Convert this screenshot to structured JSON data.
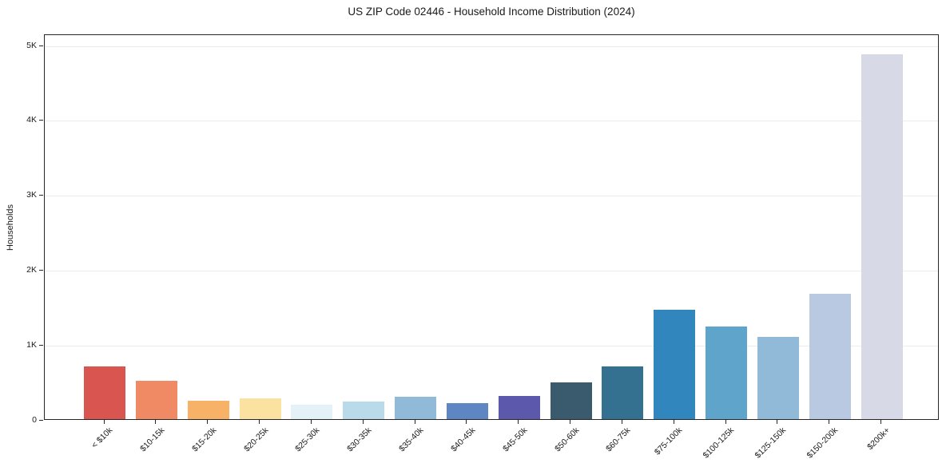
{
  "chart_data": {
    "type": "bar",
    "title": "US ZIP Code 02446 - Household Income Distribution (2024)",
    "xlabel": "",
    "ylabel": "Households",
    "categories": [
      "< $10k",
      "$10-15k",
      "$15-20k",
      "$20-25k",
      "$25-30k",
      "$30-35k",
      "$35-40k",
      "$40-45k",
      "$45-50k",
      "$50-60k",
      "$60-75k",
      "$75-100k",
      "$100-125k",
      "$125-150k",
      "$150-200k",
      "$200k+"
    ],
    "values": [
      700,
      515,
      250,
      280,
      190,
      235,
      300,
      215,
      310,
      490,
      700,
      1465,
      1240,
      1100,
      1670,
      4875
    ],
    "bar_colors": [
      "#d8564f",
      "#f08a64",
      "#f8b268",
      "#fce2a0",
      "#e4f1f6",
      "#b9dbe9",
      "#91b9d8",
      "#5e86c2",
      "#5c59ad",
      "#3a5a6e",
      "#347191",
      "#3187bd",
      "#5fa5cb",
      "#91bad9",
      "#b9c9e1",
      "#d7d9e7"
    ],
    "ylim": [
      0,
      5150
    ],
    "yticks": [
      {
        "value": 0,
        "label": "0"
      },
      {
        "value": 1000,
        "label": "1K"
      },
      {
        "value": 2000,
        "label": "2K"
      },
      {
        "value": 3000,
        "label": "3K"
      },
      {
        "value": 4000,
        "label": "4K"
      },
      {
        "value": 5000,
        "label": "5K"
      }
    ],
    "grid": true,
    "legend": false,
    "colors": {
      "background": "#ffffff",
      "grid_color": "#ececec",
      "axis_color": "#262626",
      "text_color": "#1a1a1a"
    }
  }
}
